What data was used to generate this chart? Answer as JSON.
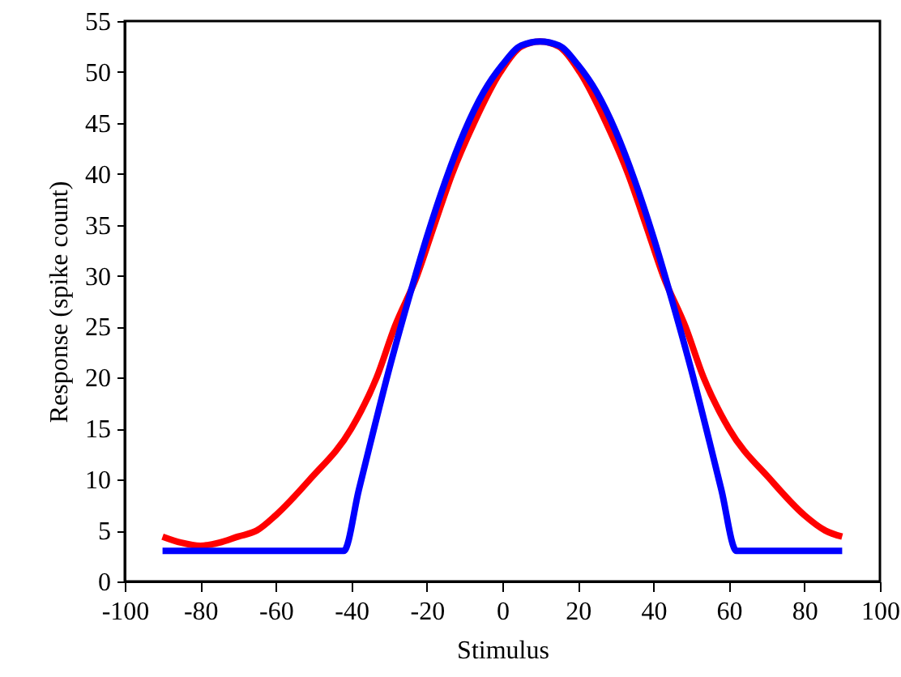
{
  "chart_data": {
    "type": "line",
    "xlabel": "Stimulus",
    "ylabel": "Response (spike count)",
    "xlim": [
      -100,
      100
    ],
    "xticks": [
      -100,
      -80,
      -60,
      -40,
      -20,
      0,
      20,
      40,
      60,
      80,
      100
    ],
    "ylim": [
      0,
      55
    ],
    "yticks": [
      0,
      5,
      10,
      15,
      20,
      25,
      30,
      35,
      40,
      45,
      50,
      55
    ],
    "grid": false,
    "marker": "none",
    "line_style": "solid",
    "series": [
      {
        "color": "#ff0000",
        "x": [
          -90,
          -85,
          -80,
          -75,
          -70,
          -65,
          -60,
          -51,
          -40,
          -33.3,
          -28.5,
          -22.6,
          -18,
          -13.3,
          -7.5,
          -0.5,
          5,
          10,
          15,
          20.5,
          27.5,
          33.3,
          38,
          42.6,
          48.5,
          53.3,
          60,
          71,
          80,
          85.5,
          90
        ],
        "values": [
          4.4,
          3.8,
          3.5,
          3.8,
          4.4,
          5,
          6.5,
          10,
          15,
          20,
          25,
          30,
          35,
          40,
          45,
          50,
          52.5,
          53,
          52.5,
          50,
          45,
          40,
          35,
          30,
          25,
          20,
          15,
          10,
          6.5,
          5,
          4.4
        ]
      },
      {
        "color": "#0000ff",
        "x": [
          -90,
          -42,
          -38,
          -35,
          -30,
          -25,
          -20,
          -15,
          -10,
          -5,
          0,
          5,
          10,
          15,
          20,
          25,
          30,
          35,
          40,
          45,
          50,
          55,
          58,
          62,
          90
        ],
        "values": [
          3,
          3,
          9,
          13.5,
          20.8,
          27.5,
          33.8,
          39.4,
          44.2,
          48,
          50.7,
          52.6,
          53,
          52.6,
          50.7,
          48,
          44.2,
          39.4,
          33.8,
          27.5,
          20.8,
          13.5,
          9,
          3,
          3
        ]
      }
    ]
  }
}
